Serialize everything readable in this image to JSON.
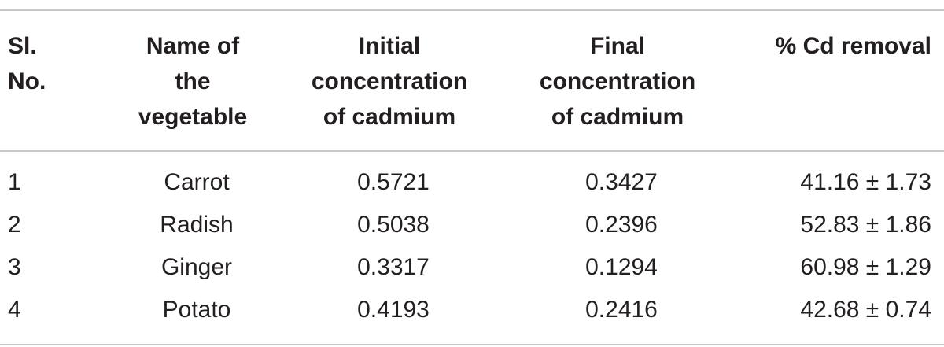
{
  "table": {
    "headers": {
      "sl_no": "Sl. No.",
      "name": "Name of the vegetable",
      "initial": "Initial concentration of cadmium",
      "final": "Final concentration of cadmium",
      "removal": "% Cd removal"
    },
    "rows": [
      {
        "sl": "1",
        "name": "Carrot",
        "initial": "0.5721",
        "final": "0.3427",
        "removal": "41.16 ± 1.73"
      },
      {
        "sl": "2",
        "name": "Radish",
        "initial": "0.5038",
        "final": "0.2396",
        "removal": "52.83 ± 1.86"
      },
      {
        "sl": "3",
        "name": "Ginger",
        "initial": "0.3317",
        "final": "0.1294",
        "removal": "60.98 ± 1.29"
      },
      {
        "sl": "4",
        "name": "Potato",
        "initial": "0.4193",
        "final": "0.2416",
        "removal": "42.68 ± 0.74"
      }
    ]
  }
}
